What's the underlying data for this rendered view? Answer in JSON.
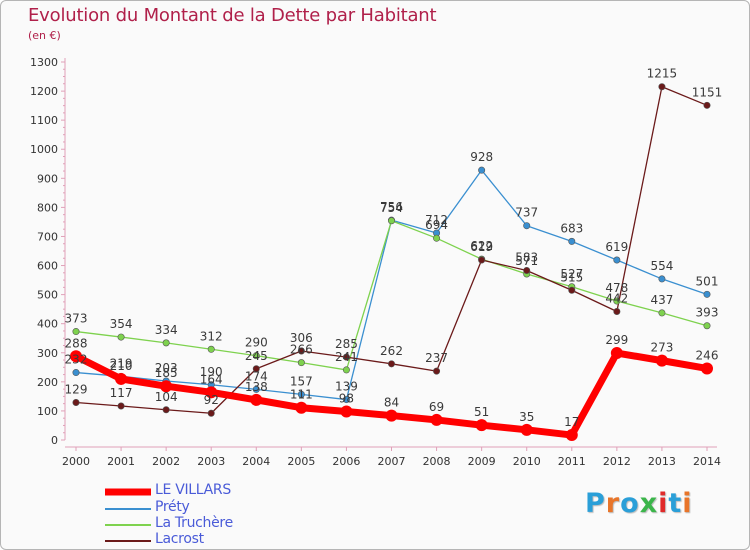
{
  "title": "Evolution du Montant de la Dette par Habitant",
  "unit": "(en €)",
  "logo_text": "Proxiti",
  "logo_colors": [
    "#2a9fd8",
    "#e8752a",
    "#2a9fd8",
    "#3bb54a",
    "#e02a2a",
    "#2a9fd8",
    "#e8752a"
  ],
  "chart_data": {
    "type": "line",
    "x": [
      "2000",
      "2001",
      "2002",
      "2003",
      "2004",
      "2005",
      "2006",
      "2007",
      "2008",
      "2009",
      "2010",
      "2011",
      "2012",
      "2013",
      "2014"
    ],
    "ylim": [
      0,
      1300
    ],
    "yticks": [
      0,
      100,
      200,
      300,
      400,
      500,
      600,
      700,
      800,
      900,
      1000,
      1100,
      1200,
      1300
    ],
    "grid": false,
    "legend_position": "bottom-left",
    "series": [
      {
        "name": "LE VILLARS",
        "color": "#ff0000",
        "values": [
          288,
          210,
          185,
          164,
          138,
          111,
          98,
          84,
          69,
          51,
          35,
          17,
          299,
          273,
          246
        ],
        "labels": [
          "288",
          "210",
          "185",
          "164",
          "138",
          "111",
          "98",
          "84",
          "69",
          "51",
          "35",
          "17",
          "299",
          "273",
          "246"
        ]
      },
      {
        "name": "Préty",
        "color": "#3a8fd0",
        "values": [
          232,
          219,
          203,
          190,
          174,
          157,
          139,
          756,
          712,
          928,
          737,
          683,
          619,
          554,
          501
        ],
        "labels": [
          "232",
          "219",
          "203",
          "190",
          "174",
          "157",
          "139",
          "756",
          "712",
          "928",
          "737",
          "683",
          "619",
          "554",
          "501"
        ]
      },
      {
        "name": "La Truchère",
        "color": "#7ed24e",
        "values": [
          373,
          354,
          334,
          312,
          290,
          266,
          241,
          754,
          694,
          622,
          571,
          527,
          478,
          437,
          393
        ],
        "labels": [
          "373",
          "354",
          "334",
          "312",
          "290",
          "266",
          "241",
          "754",
          "694",
          "622",
          "571",
          "527",
          "478",
          "437",
          "393"
        ]
      },
      {
        "name": "Lacrost",
        "color": "#6b1a1a",
        "values": [
          129,
          117,
          104,
          92,
          245,
          306,
          285,
          262,
          237,
          619,
          583,
          515,
          442,
          1215,
          1151
        ],
        "labels": [
          "129",
          "117",
          "104",
          "92",
          "245",
          "306",
          "285",
          "262",
          "237",
          "619",
          "583",
          "515",
          "442",
          "1215",
          "1151"
        ]
      }
    ]
  }
}
